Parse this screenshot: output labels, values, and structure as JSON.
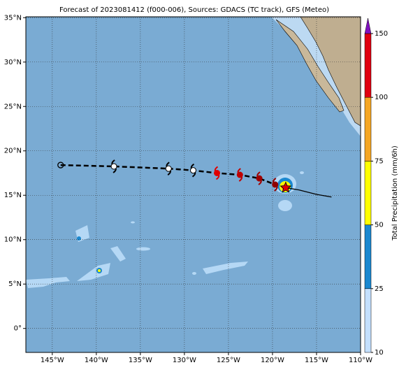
{
  "map": {
    "title": "Forecast of 2023081412 (f000-006), Sources: GDACS (TC track), GFS (Meteo)",
    "lonlim": [
      -148,
      -110
    ],
    "latlim": [
      -2.7,
      35.1
    ],
    "lon_ticks": [
      {
        "value": -145,
        "label": "145°W"
      },
      {
        "value": -140,
        "label": "140°W"
      },
      {
        "value": -135,
        "label": "135°W"
      },
      {
        "value": -130,
        "label": "130°W"
      },
      {
        "value": -125,
        "label": "125°W"
      },
      {
        "value": -120,
        "label": "120°W"
      },
      {
        "value": -115,
        "label": "115°W"
      },
      {
        "value": -110,
        "label": "110°W"
      }
    ],
    "lat_ticks": [
      {
        "value": 0,
        "label": "0°"
      },
      {
        "value": 5,
        "label": "5°N"
      },
      {
        "value": 10,
        "label": "10°N"
      },
      {
        "value": 15,
        "label": "15°N"
      },
      {
        "value": 20,
        "label": "20°N"
      },
      {
        "value": 25,
        "label": "25°N"
      },
      {
        "value": 30,
        "label": "30°N"
      },
      {
        "value": 35,
        "label": "35°N"
      }
    ],
    "track": {
      "lon": [
        -144.05,
        -138,
        -131.8,
        -129,
        -126.3,
        -123.7,
        -121.5,
        -119.7
      ],
      "lat": [
        18.4,
        18.25,
        18.0,
        17.8,
        17.5,
        17.3,
        16.9,
        16.2
      ],
      "colors": [
        "#ffffff",
        "#ffffff",
        "#ffffff",
        "#ffffff",
        "#e00000",
        "#c00000",
        "#a00000",
        "#900000"
      ]
    },
    "forecast": {
      "lon": [
        -118.5,
        -117,
        -115,
        -113.3
      ],
      "lat": [
        15.85,
        15.6,
        15.1,
        14.8
      ]
    },
    "colorbar": {
      "label": "Total Precipitation (mm/6h)",
      "ticks": [
        10,
        25,
        50,
        75,
        100,
        150
      ],
      "colors": [
        "#c4e0ff",
        "#1a88d0",
        "#ffff00",
        "#f5a623",
        "#e00010"
      ],
      "extend_color": "#8010c0"
    }
  }
}
